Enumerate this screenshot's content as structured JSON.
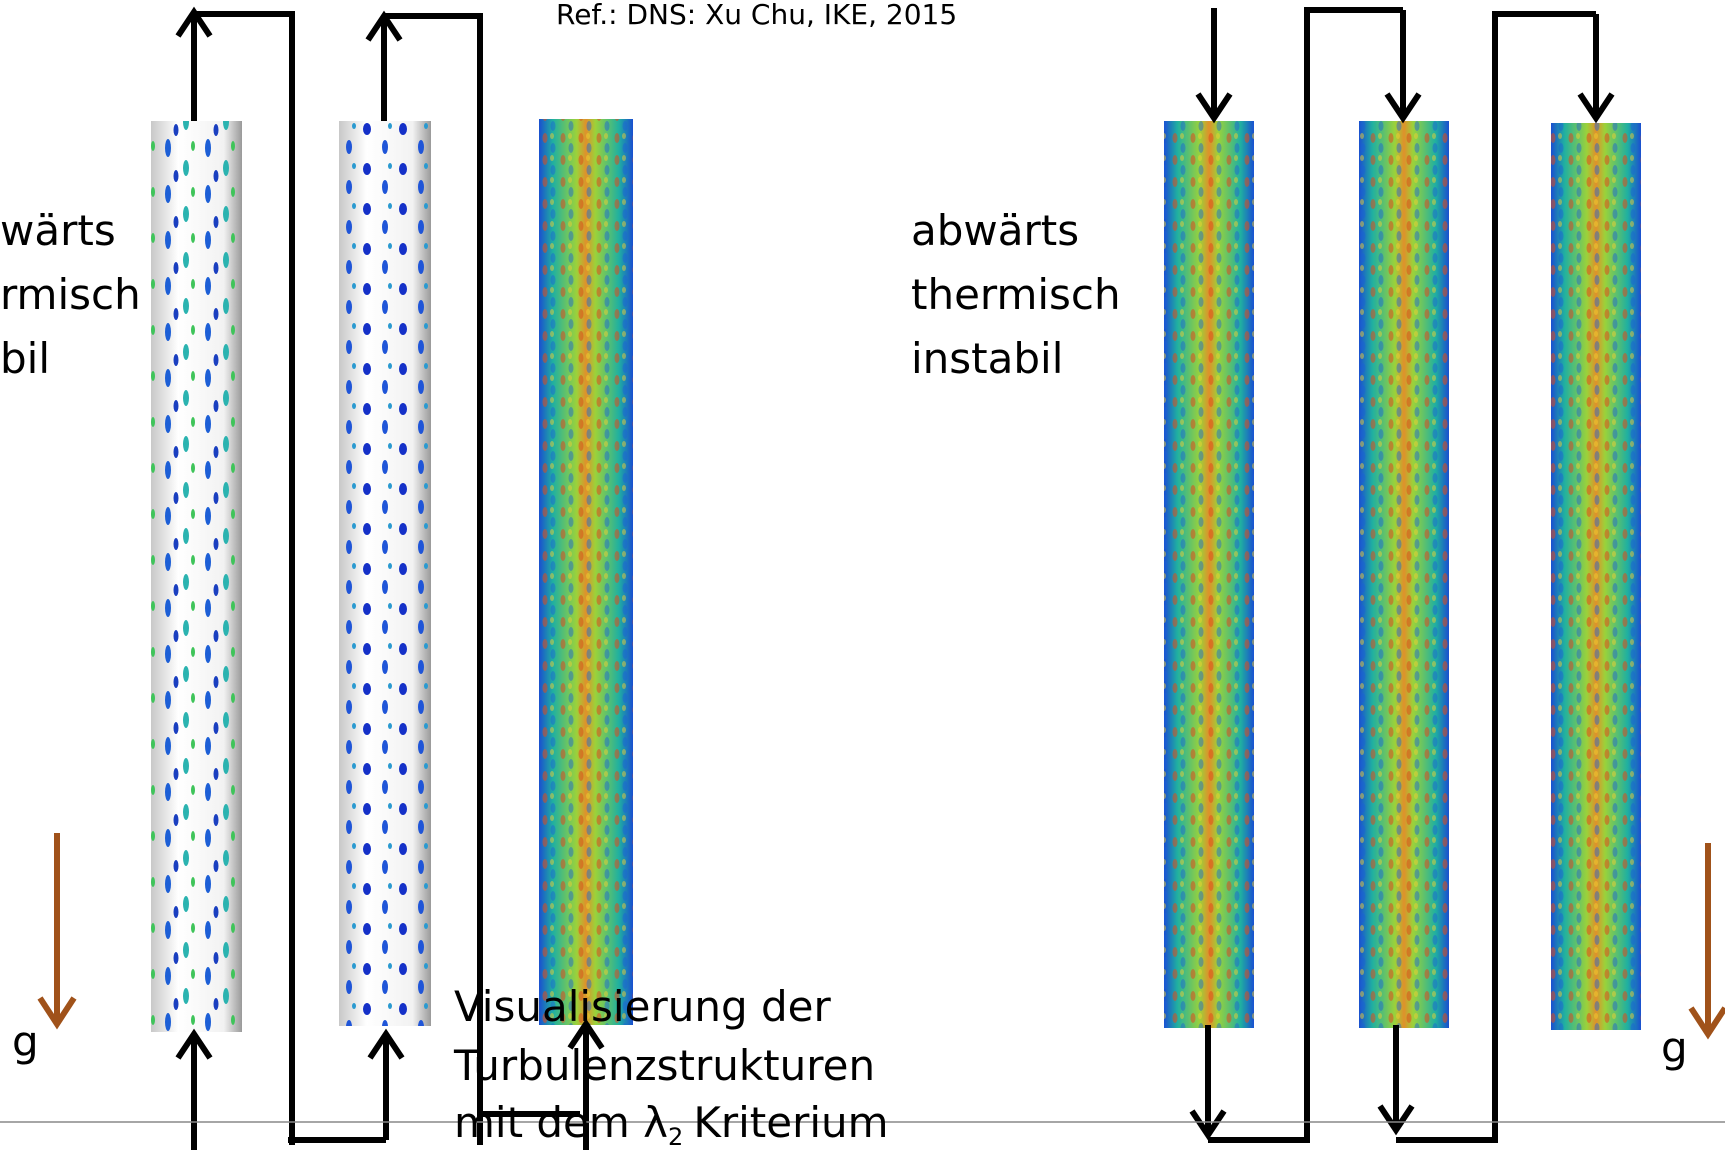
{
  "reference": "Ref.: DNS: Xu Chu, IKE, 2015",
  "left_label": [
    "wärts",
    "rmisch",
    "bil"
  ],
  "right_label": [
    "abwärts",
    "thermisch",
    "instabil"
  ],
  "caption": {
    "lines": [
      "Visualisierung der",
      "Turbulenzstrukturen"
    ],
    "last_line": {
      "text": "mit dem λ",
      "subscript": "2",
      "rest": "Kriterium"
    }
  },
  "gravity_left": "g",
  "gravity_right": "g"
}
